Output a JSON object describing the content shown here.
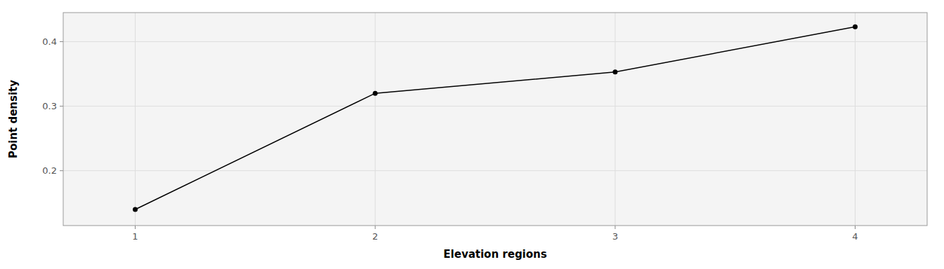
{
  "chart_data": {
    "type": "line",
    "x": [
      1,
      2,
      3,
      4
    ],
    "values": [
      0.14,
      0.32,
      0.353,
      0.423
    ],
    "xlabel": "Elevation regions",
    "ylabel": "Point density",
    "color": "#000000",
    "marker": "circle",
    "xlim": [
      0.7,
      4.3
    ],
    "ylim": [
      0.115,
      0.445
    ],
    "xticks": [
      1,
      2,
      3,
      4
    ],
    "yticks": [
      0.2,
      0.3,
      0.4
    ],
    "grid": true
  }
}
